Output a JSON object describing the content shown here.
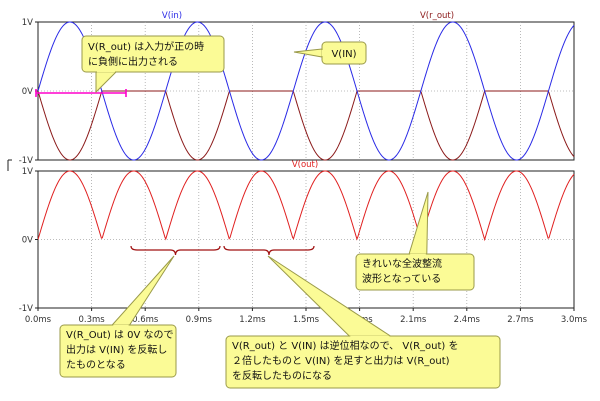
{
  "chart_data": [
    {
      "type": "line",
      "panel": "top",
      "x_unit": "ms",
      "x": [
        0,
        0.3,
        0.6,
        0.9,
        1.2,
        1.5,
        1.8,
        2.1,
        2.4,
        2.7,
        3.0
      ],
      "ylim": [
        -1,
        1
      ],
      "y_ticks": [
        "1V",
        "0V",
        "-1V"
      ],
      "series": [
        {
          "name": "V(in)",
          "color": "#2a2ae6",
          "frequency_khz": 1.4,
          "amplitude": 1,
          "values_note": "sine"
        },
        {
          "name": "V(r_out)",
          "color": "#8b1a1a",
          "frequency_khz": 1.4,
          "amplitude": 1
        }
      ],
      "grid": true
    },
    {
      "type": "line",
      "panel": "bottom",
      "x_unit": "ms",
      "x_tick_labels": [
        "0.0ms",
        "0.3ms",
        "0.6ms",
        "0.9ms",
        "1.2ms",
        "1.5ms",
        "1.8ms",
        "2.1ms",
        "2.4ms",
        "2.7ms",
        "3.0ms"
      ],
      "ylim": [
        -1,
        1
      ],
      "y_ticks": [
        "1V",
        "0V",
        "-1V"
      ],
      "series": [
        {
          "name": "V(out)",
          "color": "#e02020",
          "frequency_khz": 1.4,
          "amplitude": 1
        }
      ],
      "grid": true
    }
  ],
  "annotations": {
    "rout_note": [
      "V(R_out) は入力が正の時",
      "に負側に出力される"
    ],
    "vin_note": [
      "V(IN)"
    ],
    "fullwave_note": [
      "きれいな全波整流",
      "波形となっている"
    ],
    "zero_note": [
      "V(R_Out) は 0V なので",
      "出力は V(IN) を反転し",
      "たものとなる"
    ],
    "sum_note": [
      "V(R_out) と V(IN) は逆位相なので、 V(R_out) を",
      "２倍したものと V(IN) を足すと出力は V(R_out)",
      "を反転したものになる"
    ]
  },
  "colors": {
    "callout_fill": "#fbfb96",
    "callout_stroke": "#9a9a4a",
    "brace": "#a01010",
    "highlight": "#ff00cc",
    "grid": "#a8a8a8",
    "frame": "#222222"
  }
}
